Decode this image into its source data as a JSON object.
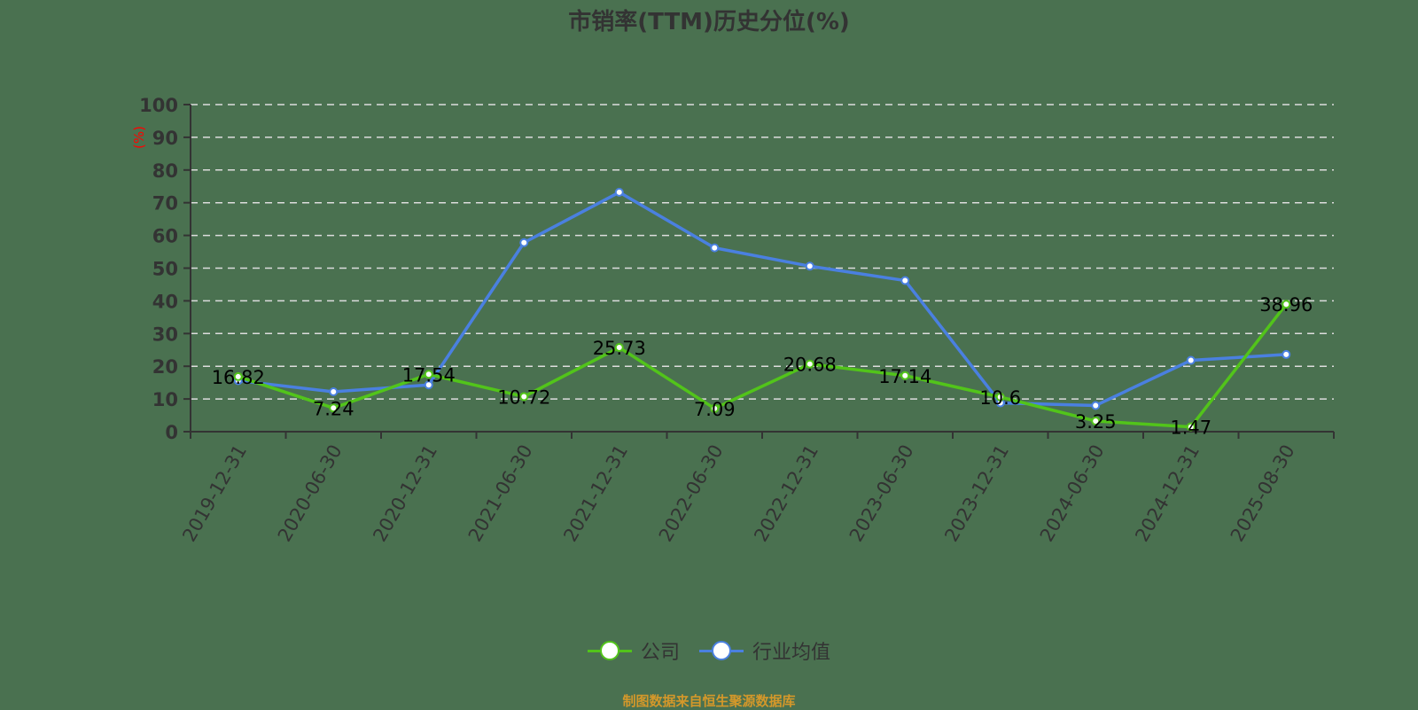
{
  "chart_data": {
    "type": "line",
    "title": "市销率(TTM)历史分位(%)",
    "xlabel": "",
    "ylabel": "(%)",
    "ylim": [
      0,
      100
    ],
    "yticks": [
      0,
      10,
      20,
      30,
      40,
      50,
      60,
      70,
      80,
      90,
      100
    ],
    "grid": "horizontal dashed",
    "legend_position": "bottom",
    "categories": [
      "2019-12-31",
      "2020-06-30",
      "2020-12-31",
      "2021-06-30",
      "2021-12-31",
      "2022-06-30",
      "2022-12-31",
      "2023-06-30",
      "2023-12-31",
      "2024-06-30",
      "2024-12-31",
      "2025-08-30"
    ],
    "series": [
      {
        "name": "公司",
        "color": "#52c41a",
        "labeled": true,
        "values": [
          16.82,
          7.24,
          17.54,
          10.72,
          25.73,
          7.09,
          20.68,
          17.14,
          10.6,
          3.25,
          1.47,
          38.96
        ]
      },
      {
        "name": "行业均值",
        "color": "#4a80e0",
        "labeled": false,
        "values": [
          15.6,
          12.2,
          14.3,
          57.8,
          73.2,
          56.2,
          50.6,
          46.2,
          8.8,
          8.0,
          21.8,
          23.6
        ]
      }
    ]
  },
  "source_note": "制图数据来自恒生聚源数据库",
  "colors": {
    "background": "#4a7150",
    "axis": "#333333",
    "grid": "#dddddd",
    "ylabel": "#ff0000",
    "source": "#d4982a"
  }
}
